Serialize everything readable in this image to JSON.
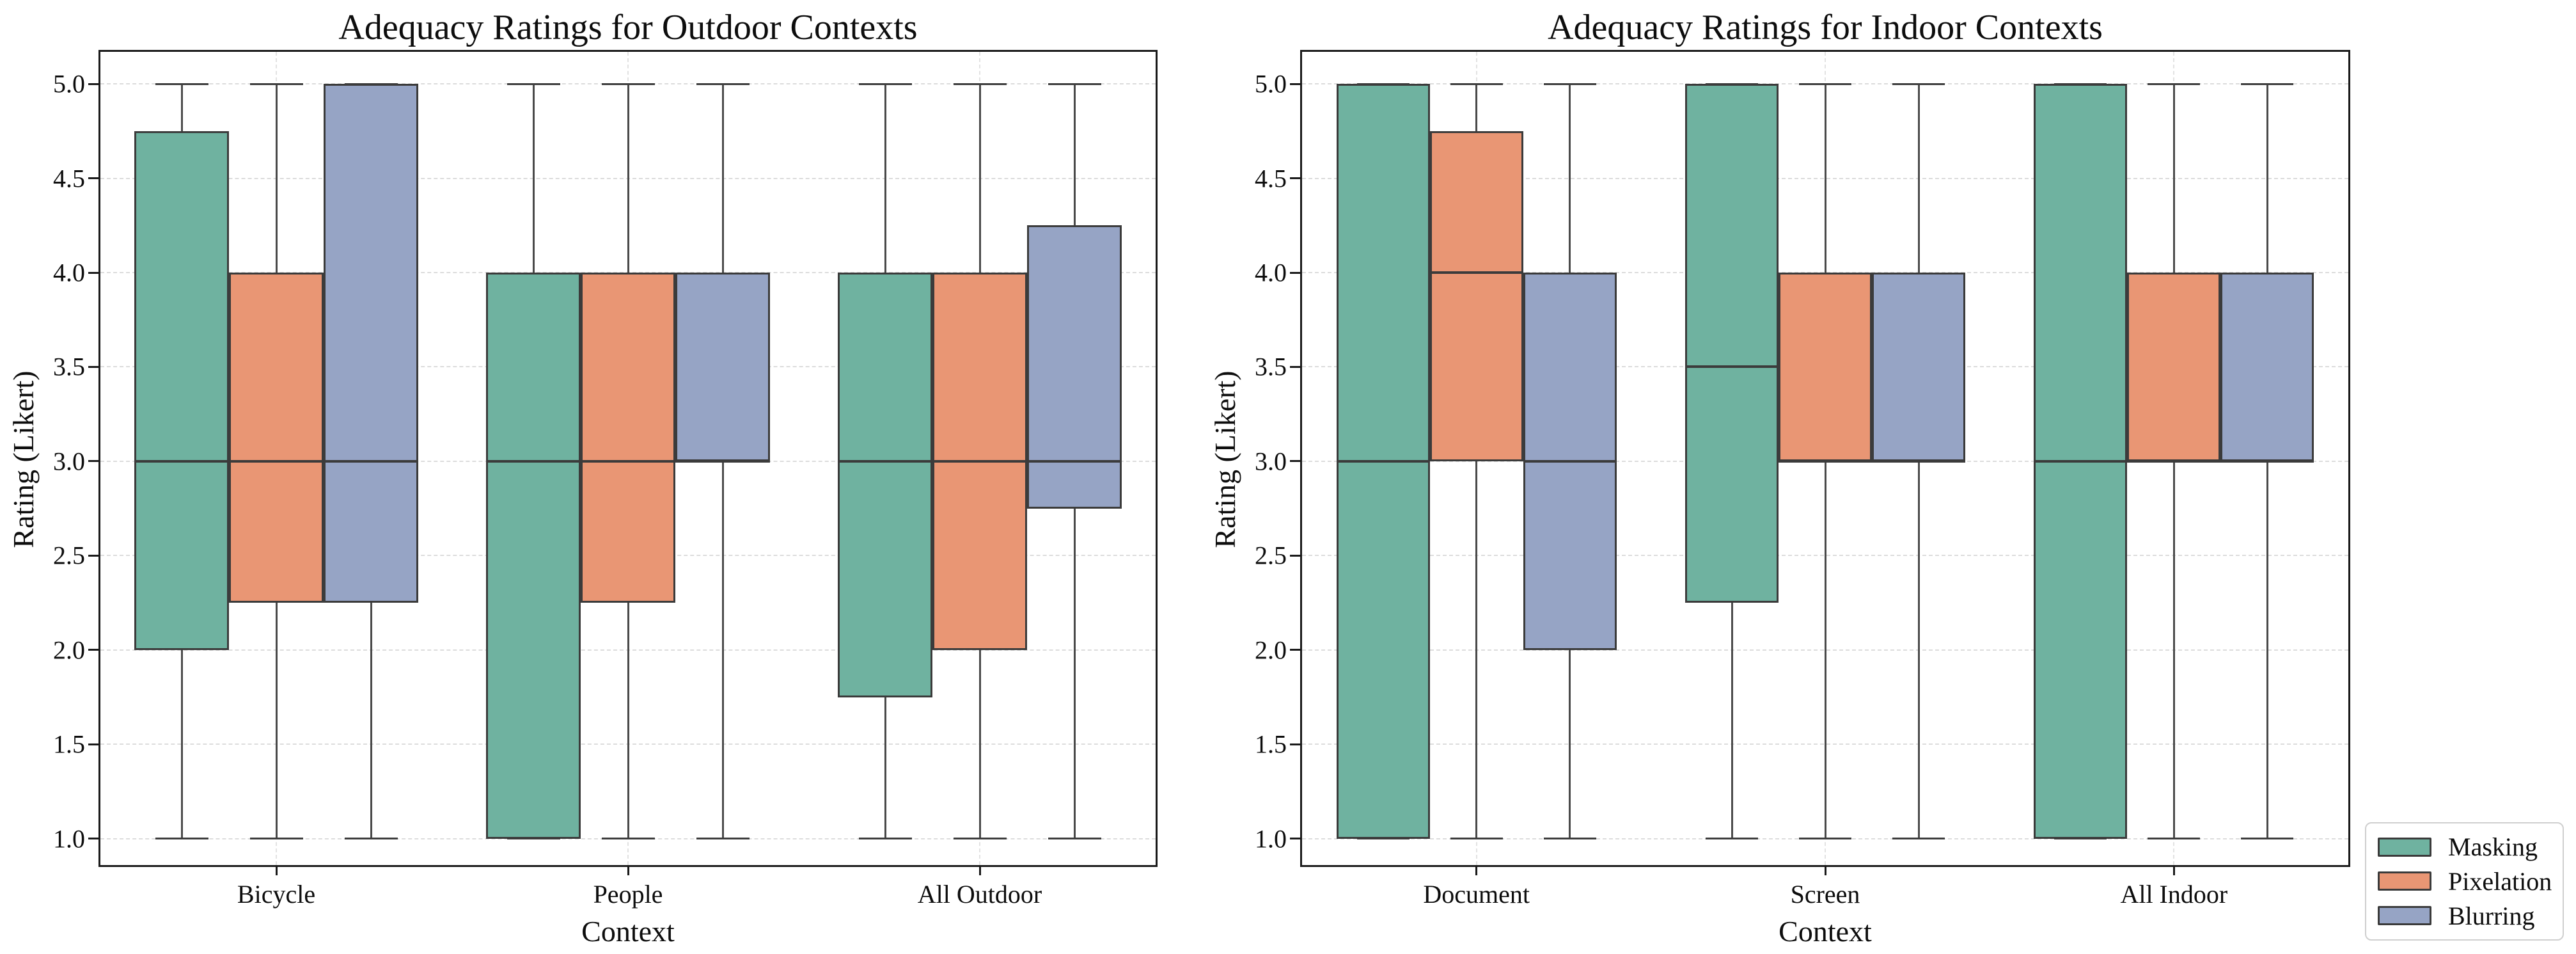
{
  "legend": {
    "position": "lower-right",
    "entries": [
      {
        "label": "Masking",
        "color": "#6FB2A0"
      },
      {
        "label": "Pixelation",
        "color": "#E99674"
      },
      {
        "label": "Blurring",
        "color": "#96A4C5"
      }
    ]
  },
  "style": {
    "box_edge_color": "#3b3b3b",
    "whisker_color": "#4a4a4a",
    "grid_color": "#dcdcdc",
    "spine_color": "#1a1a1a",
    "background": "#ffffff"
  },
  "chart_data": [
    {
      "type": "boxplot",
      "title": "Adequacy Ratings for Outdoor Contexts",
      "xlabel": "Context",
      "ylabel": "Rating (Likert)",
      "categories": [
        "Bicycle",
        "People",
        "All Outdoor"
      ],
      "ylim": [
        0.86,
        5.17
      ],
      "yticks": [
        1.0,
        1.5,
        2.0,
        2.5,
        3.0,
        3.5,
        4.0,
        4.5,
        5.0
      ],
      "grid": true,
      "legend_position": "none",
      "series": [
        {
          "name": "Masking",
          "color": "#6FB2A0",
          "boxes": [
            {
              "whislo": 1.0,
              "q1": 2.0,
              "med": 3.0,
              "q3": 4.75,
              "whishi": 5.0
            },
            {
              "whislo": 1.0,
              "q1": 1.0,
              "med": 3.0,
              "q3": 4.0,
              "whishi": 5.0
            },
            {
              "whislo": 1.0,
              "q1": 1.75,
              "med": 3.0,
              "q3": 4.0,
              "whishi": 5.0
            }
          ]
        },
        {
          "name": "Pixelation",
          "color": "#E99674",
          "boxes": [
            {
              "whislo": 1.0,
              "q1": 2.25,
              "med": 3.0,
              "q3": 4.0,
              "whishi": 5.0
            },
            {
              "whislo": 1.0,
              "q1": 2.25,
              "med": 3.0,
              "q3": 4.0,
              "whishi": 5.0
            },
            {
              "whislo": 1.0,
              "q1": 2.0,
              "med": 3.0,
              "q3": 4.0,
              "whishi": 5.0
            }
          ]
        },
        {
          "name": "Blurring",
          "color": "#96A4C5",
          "boxes": [
            {
              "whislo": 1.0,
              "q1": 2.25,
              "med": 3.0,
              "q3": 5.0,
              "whishi": 5.0
            },
            {
              "whislo": 1.0,
              "q1": 3.0,
              "med": 3.0,
              "q3": 4.0,
              "whishi": 5.0
            },
            {
              "whislo": 1.0,
              "q1": 2.75,
              "med": 3.0,
              "q3": 4.25,
              "whishi": 5.0
            }
          ]
        }
      ]
    },
    {
      "type": "boxplot",
      "title": "Adequacy Ratings for Indoor Contexts",
      "xlabel": "Context",
      "ylabel": "Rating (Likert)",
      "categories": [
        "Document",
        "Screen",
        "All Indoor"
      ],
      "ylim": [
        0.86,
        5.17
      ],
      "yticks": [
        1.0,
        1.5,
        2.0,
        2.5,
        3.0,
        3.5,
        4.0,
        4.5,
        5.0
      ],
      "grid": true,
      "legend_position": "lower-right-outside",
      "series": [
        {
          "name": "Masking",
          "color": "#6FB2A0",
          "boxes": [
            {
              "whislo": 1.0,
              "q1": 1.0,
              "med": 3.0,
              "q3": 5.0,
              "whishi": 5.0
            },
            {
              "whislo": 1.0,
              "q1": 2.25,
              "med": 3.5,
              "q3": 5.0,
              "whishi": 5.0
            },
            {
              "whislo": 1.0,
              "q1": 1.0,
              "med": 3.0,
              "q3": 5.0,
              "whishi": 5.0
            }
          ]
        },
        {
          "name": "Pixelation",
          "color": "#E99674",
          "boxes": [
            {
              "whislo": 1.0,
              "q1": 3.0,
              "med": 4.0,
              "q3": 4.75,
              "whishi": 5.0
            },
            {
              "whislo": 1.0,
              "q1": 3.0,
              "med": 3.0,
              "q3": 4.0,
              "whishi": 5.0
            },
            {
              "whislo": 1.0,
              "q1": 3.0,
              "med": 3.0,
              "q3": 4.0,
              "whishi": 5.0
            }
          ]
        },
        {
          "name": "Blurring",
          "color": "#96A4C5",
          "boxes": [
            {
              "whislo": 1.0,
              "q1": 2.0,
              "med": 3.0,
              "q3": 4.0,
              "whishi": 5.0
            },
            {
              "whislo": 1.0,
              "q1": 3.0,
              "med": 3.0,
              "q3": 4.0,
              "whishi": 5.0
            },
            {
              "whislo": 1.0,
              "q1": 3.0,
              "med": 3.0,
              "q3": 4.0,
              "whishi": 5.0
            }
          ]
        }
      ]
    }
  ]
}
